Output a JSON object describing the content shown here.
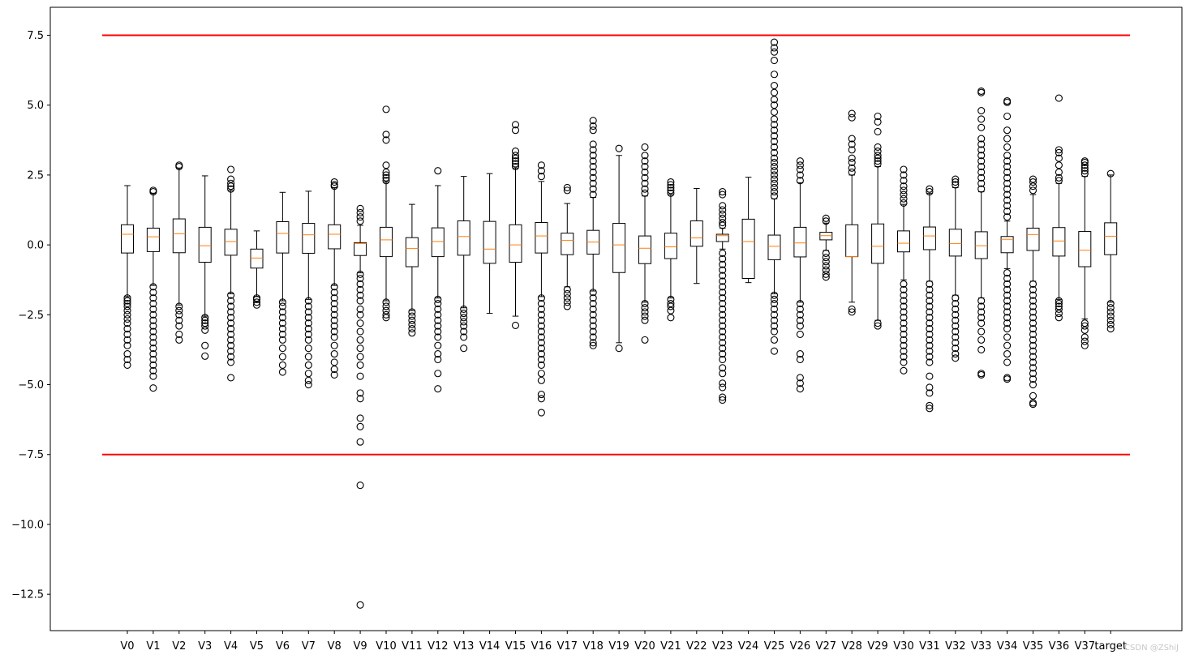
{
  "chart_data": {
    "type": "box",
    "title": "",
    "xlabel": "",
    "ylabel": "",
    "ylim": [
      -13.8,
      8.5
    ],
    "yticks": [
      -12.5,
      -10.0,
      -7.5,
      -5.0,
      -2.5,
      0.0,
      2.5,
      5.0,
      7.5
    ],
    "ytick_labels": [
      "−12.5",
      "−10.0",
      "−7.5",
      "−5.0",
      "−2.5",
      "0.0",
      "2.5",
      "5.0",
      "7.5"
    ],
    "grid": false,
    "reference_lines": [
      {
        "y": 7.5,
        "color": "#ff0000"
      },
      {
        "y": -7.5,
        "color": "#ff0000"
      }
    ],
    "box_color": "#000000",
    "median_color": "#ff7f0e",
    "categories": [
      "V0",
      "V1",
      "V2",
      "V3",
      "V4",
      "V5",
      "V6",
      "V7",
      "V8",
      "V9",
      "V10",
      "V11",
      "V12",
      "V13",
      "V14",
      "V15",
      "V16",
      "V17",
      "V18",
      "V19",
      "V20",
      "V21",
      "V22",
      "V23",
      "V24",
      "V25",
      "V26",
      "V27",
      "V28",
      "V29",
      "V30",
      "V31",
      "V32",
      "V33",
      "V34",
      "V35",
      "V36",
      "V37",
      "target"
    ],
    "boxes": [
      {
        "label": "V0",
        "whislo": -1.85,
        "q1": -0.29,
        "median": 0.38,
        "q3": 0.72,
        "whishi": 2.12,
        "fliers": [
          -1.9,
          -2.0,
          -2.1,
          -2.2,
          -2.35,
          -2.5,
          -2.65,
          -2.8,
          -3.0,
          -3.2,
          -3.4,
          -3.6,
          -3.9,
          -4.1,
          -4.3
        ]
      },
      {
        "label": "V1",
        "whislo": -1.45,
        "q1": -0.24,
        "median": 0.29,
        "q3": 0.6,
        "whishi": 1.85,
        "fliers": [
          1.9,
          1.95,
          -1.5,
          -1.7,
          -1.9,
          -2.1,
          -2.3,
          -2.5,
          -2.7,
          -2.9,
          -3.1,
          -3.3,
          -3.5,
          -3.7,
          -3.9,
          -4.1,
          -4.3,
          -4.5,
          -4.7,
          -5.12
        ]
      },
      {
        "label": "V2",
        "whislo": -2.15,
        "q1": -0.28,
        "median": 0.4,
        "q3": 0.93,
        "whishi": 2.75,
        "fliers": [
          2.8,
          2.85,
          -2.2,
          -2.35,
          -2.5,
          -2.7,
          -2.9,
          -3.2,
          -3.4
        ]
      },
      {
        "label": "V3",
        "whislo": -2.55,
        "q1": -0.62,
        "median": -0.03,
        "q3": 0.63,
        "whishi": 2.47,
        "fliers": [
          -2.6,
          -2.7,
          -2.8,
          -2.9,
          -3.05,
          -3.6,
          -3.98
        ]
      },
      {
        "label": "V4",
        "whislo": -1.75,
        "q1": -0.37,
        "median": 0.12,
        "q3": 0.56,
        "whishi": 1.95,
        "fliers": [
          2.0,
          2.1,
          2.2,
          2.35,
          2.7,
          -1.8,
          -2.0,
          -2.2,
          -2.4,
          -2.6,
          -2.8,
          -3.0,
          -3.2,
          -3.4,
          -3.6,
          -3.8,
          -4.0,
          -4.2,
          -4.75
        ]
      },
      {
        "label": "V5",
        "whislo": -1.85,
        "q1": -0.83,
        "median": -0.47,
        "q3": -0.15,
        "whishi": 0.5,
        "fliers": [
          -1.9,
          -1.95,
          -2.05,
          -2.15
        ]
      },
      {
        "label": "V6",
        "whislo": -2.0,
        "q1": -0.29,
        "median": 0.41,
        "q3": 0.83,
        "whishi": 1.88,
        "fliers": [
          -2.05,
          -2.2,
          -2.4,
          -2.6,
          -2.8,
          -3.0,
          -3.2,
          -3.4,
          -3.7,
          -4.0,
          -4.3,
          -4.55
        ]
      },
      {
        "label": "V7",
        "whislo": -1.95,
        "q1": -0.3,
        "median": 0.36,
        "q3": 0.77,
        "whishi": 1.92,
        "fliers": [
          -2.0,
          -2.2,
          -2.4,
          -2.6,
          -2.8,
          -3.0,
          -3.2,
          -3.4,
          -3.7,
          -4.0,
          -4.3,
          -4.6,
          -4.85,
          -5.0
        ]
      },
      {
        "label": "V8",
        "whislo": -1.45,
        "q1": -0.14,
        "median": 0.38,
        "q3": 0.72,
        "whishi": 2.05,
        "fliers": [
          2.1,
          2.15,
          2.25,
          -1.5,
          -1.7,
          -1.9,
          -2.1,
          -2.3,
          -2.5,
          -2.7,
          -2.9,
          -3.1,
          -3.3,
          -3.6,
          -3.9,
          -4.2,
          -4.45,
          -4.65
        ]
      },
      {
        "label": "V9",
        "whislo": -1.0,
        "q1": -0.38,
        "median": 0.05,
        "q3": 0.08,
        "whishi": 0.7,
        "fliers": [
          0.85,
          1.0,
          1.15,
          1.3,
          -1.05,
          -1.2,
          -1.4,
          -1.6,
          -1.8,
          -2.0,
          -2.3,
          -2.5,
          -2.8,
          -3.1,
          -3.4,
          -3.7,
          -4.0,
          -4.3,
          -4.7,
          -5.3,
          -5.5,
          -6.2,
          -6.5,
          -7.05,
          -8.6,
          -12.88
        ]
      },
      {
        "label": "V10",
        "whislo": -2.0,
        "q1": -0.42,
        "median": 0.18,
        "q3": 0.63,
        "whishi": 2.25,
        "fliers": [
          2.3,
          2.4,
          2.5,
          2.6,
          2.85,
          3.75,
          3.95,
          4.85,
          -2.05,
          -2.2,
          -2.35,
          -2.5,
          -2.6
        ]
      },
      {
        "label": "V11",
        "whislo": -2.35,
        "q1": -0.78,
        "median": -0.13,
        "q3": 0.26,
        "whishi": 1.45,
        "fliers": [
          -2.4,
          -2.55,
          -2.7,
          -2.85,
          -3.0,
          -3.15
        ]
      },
      {
        "label": "V12",
        "whislo": -1.9,
        "q1": -0.42,
        "median": 0.12,
        "q3": 0.61,
        "whishi": 2.12,
        "fliers": [
          2.65,
          -1.95,
          -2.1,
          -2.3,
          -2.5,
          -2.7,
          -2.9,
          -3.1,
          -3.3,
          -3.6,
          -3.9,
          -4.1,
          -4.6,
          -5.15
        ]
      },
      {
        "label": "V13",
        "whislo": -2.25,
        "q1": -0.37,
        "median": 0.3,
        "q3": 0.86,
        "whishi": 2.45,
        "fliers": [
          -2.3,
          -2.45,
          -2.6,
          -2.75,
          -2.9,
          -3.1,
          -3.3,
          -3.7
        ]
      },
      {
        "label": "V14",
        "whislo": -2.45,
        "q1": -0.66,
        "median": -0.15,
        "q3": 0.84,
        "whishi": 2.55,
        "fliers": []
      },
      {
        "label": "V15",
        "whislo": -2.55,
        "q1": -0.62,
        "median": 0.0,
        "q3": 0.72,
        "whishi": 2.75,
        "fliers": [
          2.8,
          2.9,
          3.0,
          3.1,
          3.2,
          3.35,
          4.1,
          4.3,
          -2.88
        ]
      },
      {
        "label": "V16",
        "whislo": -1.85,
        "q1": -0.29,
        "median": 0.32,
        "q3": 0.8,
        "whishi": 2.27,
        "fliers": [
          2.45,
          2.65,
          2.85,
          -1.9,
          -2.1,
          -2.3,
          -2.5,
          -2.7,
          -2.9,
          -3.1,
          -3.3,
          -3.5,
          -3.7,
          -3.9,
          -4.1,
          -4.3,
          -4.6,
          -4.85,
          -5.35,
          -5.5,
          -6.0
        ]
      },
      {
        "label": "V17",
        "whislo": -1.5,
        "q1": -0.35,
        "median": 0.16,
        "q3": 0.42,
        "whishi": 1.48,
        "fliers": [
          1.95,
          2.05,
          -1.6,
          -1.75,
          -1.9,
          -2.05,
          -2.2
        ]
      },
      {
        "label": "V18",
        "whislo": -1.65,
        "q1": -0.33,
        "median": 0.1,
        "q3": 0.52,
        "whishi": 1.7,
        "fliers": [
          1.8,
          2.0,
          2.2,
          2.4,
          2.6,
          2.8,
          3.0,
          3.2,
          3.4,
          3.6,
          4.1,
          4.25,
          4.45,
          -1.7,
          -1.9,
          -2.1,
          -2.3,
          -2.5,
          -2.7,
          -2.9,
          -3.1,
          -3.3,
          -3.5,
          -3.6
        ]
      },
      {
        "label": "V19",
        "whislo": -3.5,
        "q1": -0.99,
        "median": 0.0,
        "q3": 0.77,
        "whishi": 3.2,
        "fliers": [
          3.45,
          -3.7
        ]
      },
      {
        "label": "V20",
        "whislo": -2.05,
        "q1": -0.67,
        "median": -0.12,
        "q3": 0.32,
        "whishi": 1.75,
        "fliers": [
          1.85,
          2.0,
          2.2,
          2.4,
          2.6,
          2.8,
          3.0,
          3.2,
          3.5,
          -2.1,
          -2.25,
          -2.4,
          -2.55,
          -2.7,
          -3.4
        ]
      },
      {
        "label": "V21",
        "whislo": -1.9,
        "q1": -0.49,
        "median": -0.07,
        "q3": 0.42,
        "whishi": 1.8,
        "fliers": [
          1.85,
          1.95,
          2.05,
          2.15,
          2.25,
          -1.95,
          -2.1,
          -2.2,
          -2.35,
          -2.6
        ]
      },
      {
        "label": "V22",
        "whislo": -1.38,
        "q1": -0.05,
        "median": 0.25,
        "q3": 0.86,
        "whishi": 2.02,
        "fliers": []
      },
      {
        "label": "V23",
        "whislo": -0.15,
        "q1": 0.12,
        "median": 0.33,
        "q3": 0.38,
        "whishi": 0.6,
        "fliers": [
          0.7,
          0.8,
          0.95,
          1.1,
          1.25,
          1.4,
          1.8,
          1.9,
          -0.3,
          -0.5,
          -0.7,
          -0.9,
          -1.1,
          -1.3,
          -1.5,
          -1.7,
          -1.9,
          -2.1,
          -2.3,
          -2.5,
          -2.7,
          -2.9,
          -3.1,
          -3.3,
          -3.5,
          -3.7,
          -3.9,
          -4.1,
          -4.4,
          -4.6,
          -4.95,
          -5.1,
          -5.45,
          -5.55
        ]
      },
      {
        "label": "V24",
        "whislo": -1.35,
        "q1": -1.2,
        "median": 0.12,
        "q3": 0.92,
        "whishi": 2.42,
        "fliers": []
      },
      {
        "label": "V25",
        "whislo": -1.75,
        "q1": -0.53,
        "median": -0.05,
        "q3": 0.35,
        "whishi": 1.65,
        "fliers": [
          1.75,
          1.9,
          2.05,
          2.2,
          2.35,
          2.5,
          2.65,
          2.8,
          2.95,
          3.1,
          3.3,
          3.5,
          3.7,
          3.9,
          4.1,
          4.3,
          4.5,
          4.75,
          5.0,
          5.2,
          5.45,
          5.7,
          6.1,
          6.6,
          6.9,
          7.05,
          7.25,
          -1.8,
          -1.95,
          -2.1,
          -2.3,
          -2.5,
          -2.7,
          -2.9,
          -3.1,
          -3.4,
          -3.8
        ]
      },
      {
        "label": "V26",
        "whislo": -2.05,
        "q1": -0.43,
        "median": 0.07,
        "q3": 0.63,
        "whishi": 2.22,
        "fliers": [
          2.3,
          2.5,
          2.7,
          2.85,
          3.0,
          -2.1,
          -2.3,
          -2.5,
          -2.7,
          -2.9,
          -3.2,
          -3.9,
          -4.1,
          -4.75,
          -4.95,
          -5.15
        ]
      },
      {
        "label": "V27",
        "whislo": -0.2,
        "q1": 0.18,
        "median": 0.33,
        "q3": 0.45,
        "whishi": 0.78,
        "fliers": [
          0.85,
          0.95,
          -0.3,
          -0.45,
          -0.6,
          -0.75,
          -0.9,
          -1.05,
          -1.15
        ]
      },
      {
        "label": "V28",
        "whislo": -2.05,
        "q1": -0.42,
        "median": -0.42,
        "q3": 0.72,
        "whishi": 2.5,
        "fliers": [
          2.6,
          2.75,
          2.95,
          3.1,
          3.4,
          3.6,
          3.8,
          4.55,
          4.7,
          -2.3,
          -2.4
        ]
      },
      {
        "label": "V29",
        "whislo": -2.7,
        "q1": -0.66,
        "median": -0.05,
        "q3": 0.75,
        "whishi": 2.8,
        "fliers": [
          2.9,
          3.0,
          3.1,
          3.2,
          3.35,
          3.5,
          4.05,
          4.4,
          4.6,
          -2.8,
          -2.9
        ]
      },
      {
        "label": "V30",
        "whislo": -1.25,
        "q1": -0.25,
        "median": 0.06,
        "q3": 0.5,
        "whishi": 1.45,
        "fliers": [
          1.5,
          1.65,
          1.8,
          1.95,
          2.1,
          2.3,
          2.5,
          2.7,
          -1.4,
          -1.6,
          -1.8,
          -2.0,
          -2.2,
          -2.4,
          -2.6,
          -2.8,
          -3.0,
          -3.2,
          -3.4,
          -3.6,
          -3.8,
          -4.0,
          -4.2,
          -4.5
        ]
      },
      {
        "label": "V31",
        "whislo": -1.3,
        "q1": -0.17,
        "median": 0.32,
        "q3": 0.64,
        "whishi": 1.85,
        "fliers": [
          1.9,
          2.0,
          -1.4,
          -1.6,
          -1.8,
          -2.0,
          -2.2,
          -2.4,
          -2.6,
          -2.8,
          -3.0,
          -3.2,
          -3.4,
          -3.6,
          -3.8,
          -4.0,
          -4.2,
          -4.7,
          -5.1,
          -5.3,
          -5.75,
          -5.85
        ]
      },
      {
        "label": "V32",
        "whislo": -1.8,
        "q1": -0.4,
        "median": 0.05,
        "q3": 0.56,
        "whishi": 2.05,
        "fliers": [
          2.15,
          2.25,
          2.35,
          -1.9,
          -2.1,
          -2.3,
          -2.5,
          -2.7,
          -2.9,
          -3.1,
          -3.3,
          -3.5,
          -3.7,
          -3.9,
          -4.05
        ]
      },
      {
        "label": "V33",
        "whislo": -1.9,
        "q1": -0.49,
        "median": -0.03,
        "q3": 0.47,
        "whishi": 1.9,
        "fliers": [
          2.0,
          2.2,
          2.4,
          2.6,
          2.8,
          3.0,
          3.2,
          3.4,
          3.6,
          3.8,
          4.2,
          4.5,
          4.8,
          5.45,
          5.5,
          -2.0,
          -2.2,
          -2.4,
          -2.6,
          -2.8,
          -3.1,
          -3.4,
          -3.75,
          -4.6,
          -4.65
        ]
      },
      {
        "label": "V34",
        "whislo": -0.85,
        "q1": -0.28,
        "median": 0.2,
        "q3": 0.3,
        "whishi": 0.85,
        "fliers": [
          1.0,
          1.2,
          1.4,
          1.6,
          1.8,
          2.0,
          2.2,
          2.4,
          2.6,
          2.8,
          3.0,
          3.2,
          3.5,
          3.8,
          4.1,
          4.6,
          5.1,
          5.15,
          -1.0,
          -1.2,
          -1.4,
          -1.6,
          -1.8,
          -2.0,
          -2.2,
          -2.4,
          -2.6,
          -2.8,
          -3.0,
          -3.3,
          -3.6,
          -3.9,
          -4.2,
          -4.75,
          -4.8
        ]
      },
      {
        "label": "V35",
        "whislo": -1.3,
        "q1": -0.2,
        "median": 0.37,
        "q3": 0.6,
        "whishi": 1.8,
        "fliers": [
          1.95,
          2.1,
          2.25,
          2.35,
          -1.4,
          -1.6,
          -1.8,
          -2.0,
          -2.2,
          -2.4,
          -2.6,
          -2.8,
          -3.0,
          -3.2,
          -3.4,
          -3.6,
          -3.8,
          -4.0,
          -4.2,
          -4.4,
          -4.6,
          -4.8,
          -5.0,
          -5.4,
          -5.65,
          -5.7
        ]
      },
      {
        "label": "V36",
        "whislo": -1.95,
        "q1": -0.4,
        "median": 0.14,
        "q3": 0.62,
        "whishi": 2.2,
        "fliers": [
          2.3,
          2.4,
          2.6,
          2.85,
          3.1,
          3.3,
          3.4,
          5.25,
          -2.0,
          -2.1,
          -2.2,
          -2.3,
          -2.45,
          -2.6
        ]
      },
      {
        "label": "V37",
        "whislo": -2.65,
        "q1": -0.78,
        "median": -0.19,
        "q3": 0.48,
        "whishi": 2.45,
        "fliers": [
          2.55,
          2.65,
          2.75,
          2.85,
          2.95,
          3.0,
          -2.8,
          -2.9,
          -3.05,
          -3.3,
          -3.45,
          -3.6
        ]
      },
      {
        "label": "target",
        "whislo": -2.05,
        "q1": -0.35,
        "median": 0.31,
        "q3": 0.79,
        "whishi": 2.5,
        "fliers": [
          2.55,
          -2.1,
          -2.25,
          -2.4,
          -2.55,
          -2.7,
          -2.85,
          -3.0
        ]
      }
    ]
  },
  "watermark": "CSDN @ZShiJ"
}
